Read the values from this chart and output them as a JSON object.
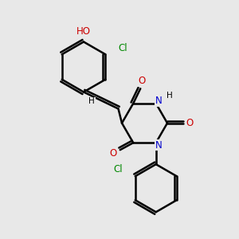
{
  "background_color": "#e8e8e8",
  "line_color": "#000000",
  "bond_width": 1.8,
  "atom_color_O": "#cc0000",
  "atom_color_N": "#0000cc",
  "atom_color_Cl": "#008800",
  "atom_color_H": "#000000",
  "xlim": [
    0,
    10
  ],
  "ylim": [
    0,
    10
  ]
}
